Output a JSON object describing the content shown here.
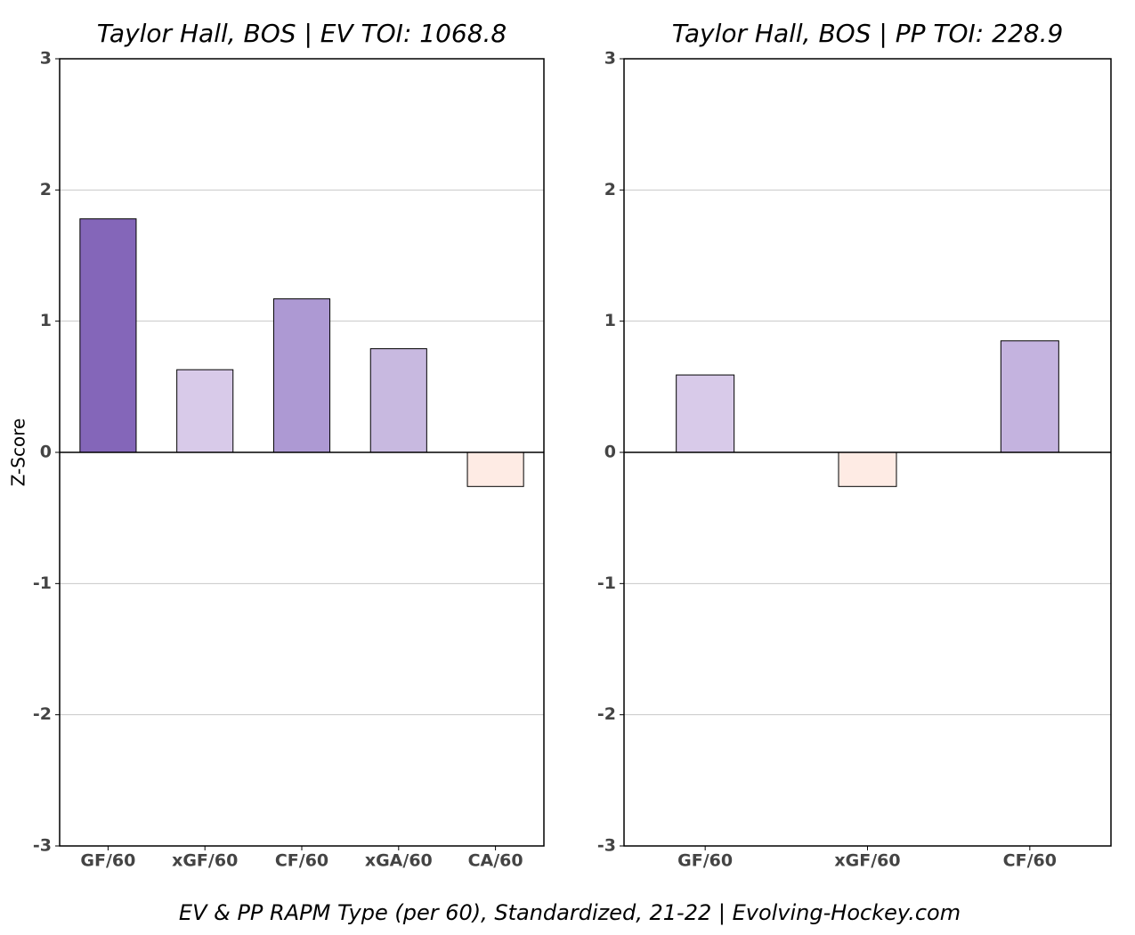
{
  "chart_data": [
    {
      "type": "bar",
      "title": "Taylor Hall, BOS  |  EV TOI: 1068.8",
      "ylabel": "Z-Score",
      "categories": [
        "GF/60",
        "xGF/60",
        "CF/60",
        "xGA/60",
        "CA/60"
      ],
      "values": [
        1.78,
        0.63,
        1.17,
        0.79,
        -0.26
      ],
      "colors": [
        "#8466b9",
        "#d8cae9",
        "#ad99d3",
        "#c8b9e0",
        "#feebe4"
      ],
      "ylim": [
        -3,
        3
      ],
      "yticks": [
        -3,
        -2,
        -1,
        0,
        1,
        2,
        3
      ],
      "grid": true
    },
    {
      "type": "bar",
      "title": "Taylor Hall, BOS  |  PP TOI: 228.9",
      "categories": [
        "GF/60",
        "xGF/60",
        "CF/60"
      ],
      "values": [
        0.59,
        -0.26,
        0.85
      ],
      "colors": [
        "#d8cae9",
        "#feebe4",
        "#c4b3df"
      ],
      "ylim": [
        -3,
        3
      ],
      "yticks": [
        -3,
        -2,
        -1,
        0,
        1,
        2,
        3
      ],
      "grid": true
    }
  ],
  "caption": "EV & PP RAPM Type (per 60), Standardized, 21-22    |    Evolving-Hockey.com"
}
